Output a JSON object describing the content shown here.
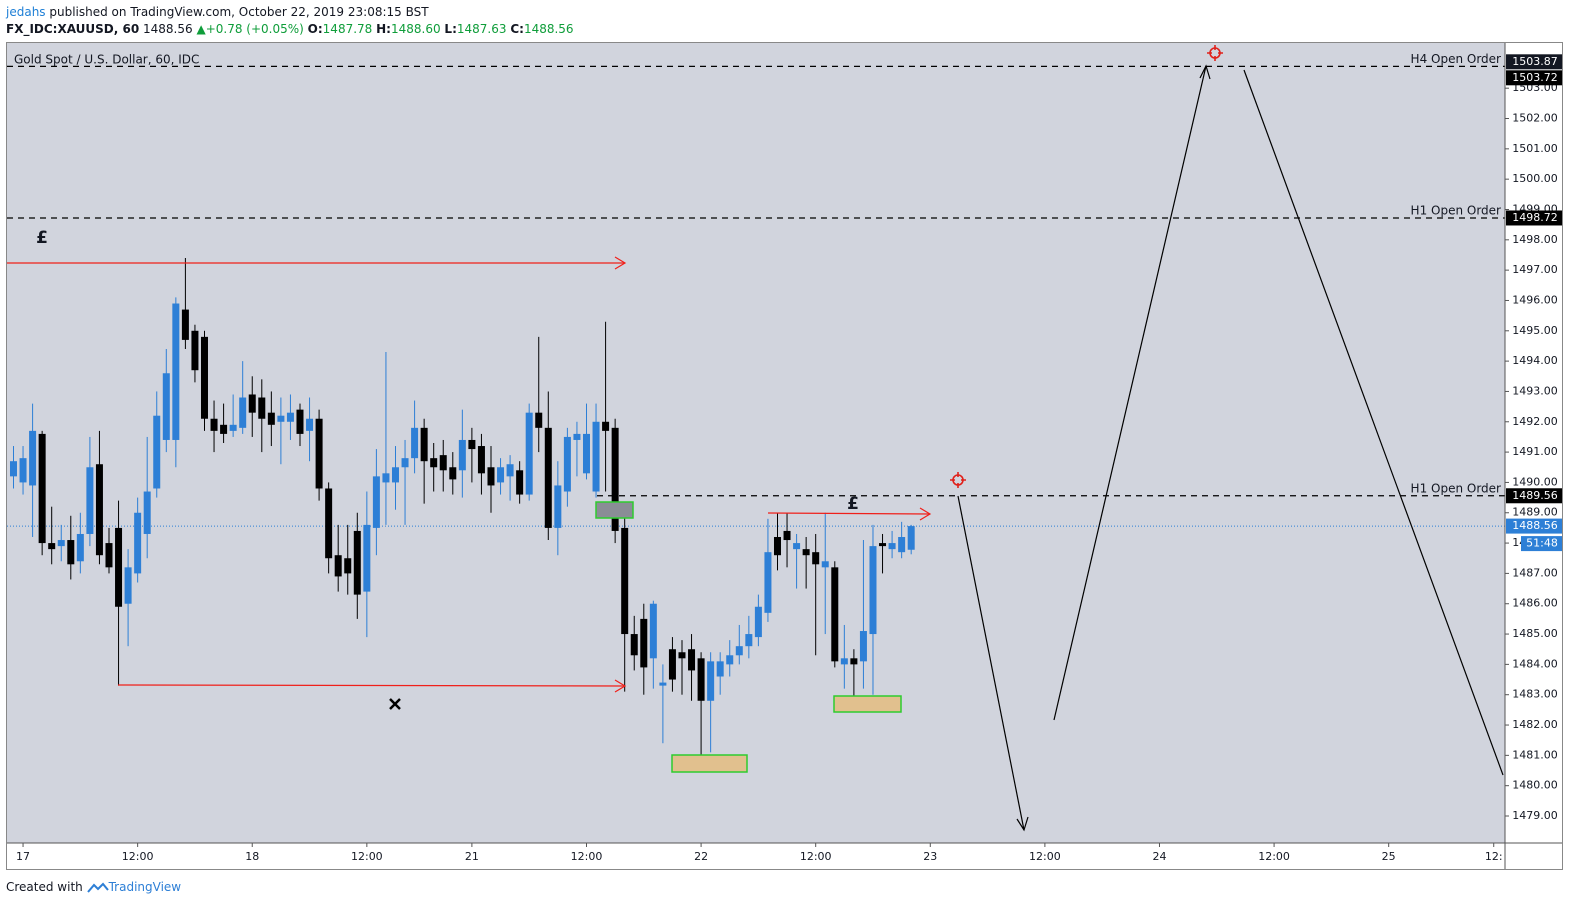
{
  "header": {
    "user": "jedahs",
    "published": "published on TradingView.com, October 22, 2019 23:08:15 BST",
    "symbol": "FX_IDC:XAUUSD, 60",
    "last": "1488.56",
    "arrow": "▲",
    "change": "+0.78 (+0.05%)",
    "o_label": "O:",
    "o": "1487.78",
    "h_label": "H:",
    "h": "1488.60",
    "l_label": "L:",
    "l": "1487.63",
    "c_label": "C:",
    "c": "1488.56"
  },
  "footer": {
    "created": "Created with",
    "brand": "TradingView"
  },
  "chart_data": {
    "type": "candlestick",
    "title": "Gold Spot / U.S. Dollar, 60, IDC",
    "up_color": "#2d7fd6",
    "down_color": "#000000",
    "background": "#d1d4dd",
    "x": [
      -1,
      0,
      1,
      2,
      3,
      4,
      5,
      6,
      7,
      8,
      9,
      10,
      11,
      12,
      13,
      14,
      15,
      16,
      17,
      18,
      19,
      20,
      21,
      22,
      23,
      24,
      25,
      26,
      27,
      28,
      29,
      30,
      31,
      32,
      33,
      34,
      35,
      36,
      37,
      38,
      39,
      40,
      41,
      42,
      43,
      44,
      45,
      46,
      47,
      48,
      49,
      50,
      51,
      52,
      53,
      54,
      55,
      56,
      57,
      58,
      59,
      60,
      61,
      62,
      63,
      64,
      65,
      66,
      67,
      68,
      69,
      70,
      71,
      72,
      73,
      74,
      75,
      76,
      77,
      78,
      79,
      80,
      81,
      82,
      83,
      84,
      85,
      86,
      87,
      88,
      89,
      90,
      91,
      92,
      93
    ],
    "open": [
      1490.2,
      1490.0,
      1489.9,
      1491.6,
      1488.0,
      1487.9,
      1488.1,
      1487.4,
      1488.3,
      1490.6,
      1488.0,
      1488.5,
      1486.0,
      1487.0,
      1488.3,
      1489.8,
      1491.4,
      1491.4,
      1495.7,
      1495.0,
      1494.8,
      1492.1,
      1491.9,
      1491.7,
      1491.8,
      1492.9,
      1492.8,
      1492.3,
      1492.0,
      1492.0,
      1492.4,
      1491.7,
      1492.1,
      1489.8,
      1487.6,
      1487.5,
      1488.4,
      1486.4,
      1488.5,
      1490.0,
      1490.0,
      1490.5,
      1490.8,
      1491.8,
      1490.8,
      1490.9,
      1490.5,
      1490.4,
      1491.4,
      1491.2,
      1490.5,
      1490.0,
      1490.2,
      1490.4,
      1489.6,
      1492.3,
      1491.8,
      1488.5,
      1489.7,
      1491.4,
      1490.3,
      1489.7,
      1492.0,
      1491.8,
      1488.5,
      1485.0,
      1485.5,
      1484.2,
      1483.3,
      1484.5,
      1484.4,
      1484.5,
      1484.2,
      1482.8,
      1483.6,
      1484.0,
      1484.3,
      1484.6,
      1484.9,
      1485.7,
      1488.2,
      1488.4,
      1487.8,
      1487.8,
      1487.7,
      1487.2,
      1487.2,
      1484.0,
      1484.2,
      1484.1,
      1485.0,
      1488.0,
      1487.8,
      1487.7,
      1487.78
    ],
    "high": [
      1491.2,
      1491.2,
      1492.6,
      1491.7,
      1489.2,
      1488.6,
      1488.9,
      1489.0,
      1491.5,
      1491.7,
      1488.5,
      1489.4,
      1487.8,
      1489.5,
      1491.5,
      1493.0,
      1494.4,
      1496.1,
      1497.4,
      1495.2,
      1495.0,
      1492.7,
      1492.6,
      1492.9,
      1494.0,
      1493.5,
      1493.4,
      1493.0,
      1492.8,
      1492.9,
      1492.6,
      1492.8,
      1492.4,
      1490.0,
      1488.6,
      1488.6,
      1489.0,
      1489.7,
      1491.1,
      1494.3,
      1491.2,
      1491.4,
      1492.7,
      1492.1,
      1491.3,
      1491.4,
      1491.0,
      1492.4,
      1491.8,
      1491.6,
      1491.2,
      1490.8,
      1490.9,
      1490.7,
      1492.6,
      1494.8,
      1493.0,
      1490.7,
      1491.8,
      1492.0,
      1492.6,
      1492.6,
      1495.3,
      1492.1,
      1488.9,
      1485.6,
      1486.0,
      1486.1,
      1484.0,
      1484.9,
      1484.8,
      1485.0,
      1484.4,
      1484.4,
      1484.4,
      1484.8,
      1485.3,
      1485.6,
      1486.3,
      1488.8,
      1489.0,
      1489.0,
      1488.3,
      1488.2,
      1488.3,
      1489.0,
      1487.4,
      1485.3,
      1484.5,
      1488.1,
      1488.6,
      1488.3,
      1488.4,
      1488.7,
      1488.6
    ],
    "low": [
      1489.8,
      1489.6,
      1488.2,
      1487.6,
      1487.3,
      1487.4,
      1486.8,
      1487.0,
      1487.9,
      1487.3,
      1487.0,
      1483.3,
      1484.6,
      1486.7,
      1487.5,
      1489.5,
      1491.0,
      1490.5,
      1494.4,
      1493.3,
      1491.7,
      1491.0,
      1491.3,
      1491.5,
      1491.6,
      1491.5,
      1491.0,
      1491.2,
      1490.6,
      1491.4,
      1491.2,
      1490.7,
      1489.4,
      1487.0,
      1486.4,
      1486.3,
      1485.5,
      1484.9,
      1487.6,
      1488.6,
      1489.1,
      1488.6,
      1490.3,
      1489.3,
      1489.7,
      1489.7,
      1489.6,
      1489.5,
      1490.0,
      1489.6,
      1489.0,
      1489.6,
      1489.4,
      1489.3,
      1489.4,
      1491.0,
      1488.1,
      1487.6,
      1489.2,
      1490.2,
      1490.1,
      1489.5,
      1489.7,
      1488.0,
      1483.1,
      1483.8,
      1483.0,
      1483.2,
      1481.4,
      1483.1,
      1483.0,
      1482.8,
      1480.6,
      1481.1,
      1483.0,
      1483.6,
      1484.0,
      1484.2,
      1484.6,
      1485.4,
      1487.1,
      1487.2,
      1486.5,
      1486.5,
      1484.3,
      1485.0,
      1483.9,
      1483.2,
      1482.7,
      1483.2,
      1483.0,
      1487.0,
      1487.5,
      1487.5,
      1487.63
    ],
    "close": [
      1490.7,
      1490.8,
      1491.7,
      1488.0,
      1487.8,
      1488.1,
      1487.3,
      1488.3,
      1490.5,
      1487.6,
      1487.2,
      1485.9,
      1487.2,
      1489.0,
      1489.7,
      1492.2,
      1493.6,
      1495.9,
      1494.7,
      1493.7,
      1492.1,
      1491.7,
      1491.6,
      1491.9,
      1492.8,
      1492.3,
      1492.1,
      1491.9,
      1492.2,
      1492.3,
      1491.6,
      1492.1,
      1489.8,
      1487.5,
      1486.9,
      1487.0,
      1486.3,
      1488.6,
      1490.2,
      1490.3,
      1490.5,
      1490.8,
      1491.8,
      1490.7,
      1490.5,
      1490.4,
      1490.1,
      1491.4,
      1491.1,
      1490.3,
      1489.9,
      1490.5,
      1490.6,
      1489.6,
      1492.3,
      1491.8,
      1488.5,
      1489.9,
      1491.5,
      1491.6,
      1491.6,
      1492.0,
      1491.7,
      1488.4,
      1485.0,
      1484.3,
      1483.9,
      1486.0,
      1483.4,
      1483.5,
      1484.2,
      1483.8,
      1482.8,
      1484.1,
      1484.1,
      1484.3,
      1484.6,
      1485.0,
      1485.9,
      1487.7,
      1487.6,
      1488.1,
      1488.0,
      1487.6,
      1487.3,
      1487.4,
      1484.1,
      1484.2,
      1484.0,
      1485.1,
      1487.9,
      1487.9,
      1488.0,
      1488.2,
      1488.56
    ],
    "ylim": [
      1478.11,
      1504.49
    ],
    "yticks": [
      {
        "value": 1479,
        "label": "1479.00"
      },
      {
        "value": 1480,
        "label": "1480.00"
      },
      {
        "value": 1481,
        "label": "1481.00"
      },
      {
        "value": 1482,
        "label": "1482.00"
      },
      {
        "value": 1483,
        "label": "1483.00"
      },
      {
        "value": 1484,
        "label": "1484.00"
      },
      {
        "value": 1485,
        "label": "1485.00"
      },
      {
        "value": 1486,
        "label": "1486.00"
      },
      {
        "value": 1487,
        "label": "1487.00"
      },
      {
        "value": 1488,
        "label": "1488.00"
      },
      {
        "value": 1489,
        "label": "1489.00"
      },
      {
        "value": 1490,
        "label": "1490.00"
      },
      {
        "value": 1491,
        "label": "1491.00"
      },
      {
        "value": 1492,
        "label": "1492.00"
      },
      {
        "value": 1493,
        "label": "1493.00"
      },
      {
        "value": 1494,
        "label": "1494.00"
      },
      {
        "value": 1495,
        "label": "1495.00"
      },
      {
        "value": 1496,
        "label": "1496.00"
      },
      {
        "value": 1497,
        "label": "1497.00"
      },
      {
        "value": 1498,
        "label": "1498.00"
      },
      {
        "value": 1499,
        "label": "1499.00"
      },
      {
        "value": 1500,
        "label": "1500.00"
      },
      {
        "value": 1501,
        "label": "1501.00"
      },
      {
        "value": 1502,
        "label": "1502.00"
      },
      {
        "value": 1503,
        "label": "1503.00"
      }
    ],
    "xlim": [
      -1.68,
      155.18
    ],
    "xticks": [
      {
        "value": 0,
        "label": "17"
      },
      {
        "value": 12,
        "label": "12:00"
      },
      {
        "value": 24,
        "label": "18"
      },
      {
        "value": 36,
        "label": "12:00"
      },
      {
        "value": 47,
        "label": "21"
      },
      {
        "value": 59,
        "label": "12:00"
      },
      {
        "value": 71,
        "label": "22"
      },
      {
        "value": 83,
        "label": "12:00"
      },
      {
        "value": 95,
        "label": "23"
      },
      {
        "value": 107,
        "label": "12:00"
      },
      {
        "value": 119,
        "label": "24"
      },
      {
        "value": 131,
        "label": "12:00"
      },
      {
        "value": 143,
        "label": "25"
      },
      {
        "value": 154,
        "label": "12:"
      }
    ],
    "levels": [
      {
        "label": "H4 Open Order",
        "value": 1503.72
      },
      {
        "label": "H1 Open Order",
        "value": 1498.72
      },
      {
        "label": "H1 Open Order",
        "value": 1489.56
      }
    ],
    "marker_price": 1503.87,
    "last_price": 1488.56,
    "countdown": "51:48",
    "annotations": [
      "£",
      "£"
    ]
  }
}
